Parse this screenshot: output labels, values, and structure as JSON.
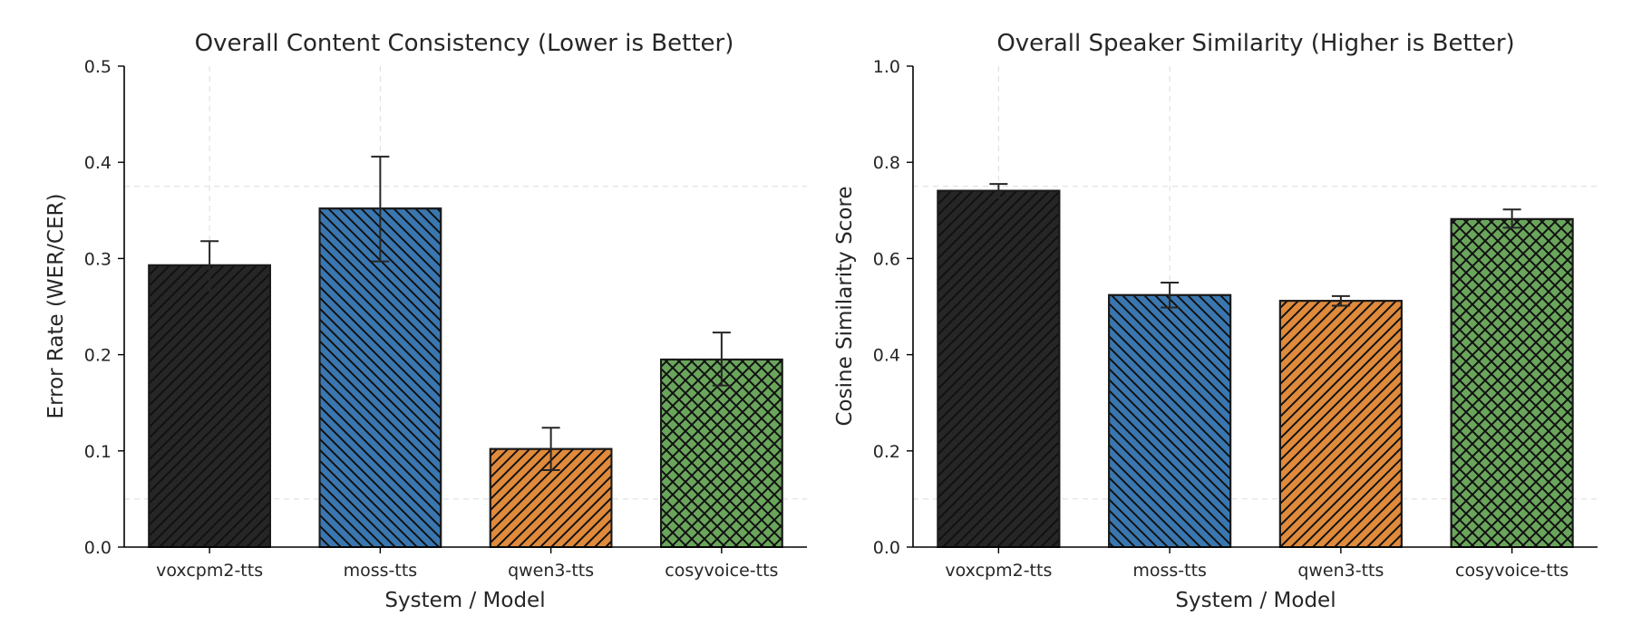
{
  "colors": {
    "voxcpm2-tts": "#262626",
    "moss-tts": "#3a77b0",
    "qwen3-tts": "#e08a3c",
    "cosyvoice-tts": "#6aa55c"
  },
  "hatches": {
    "voxcpm2-tts": "forward-diagonal",
    "moss-tts": "backward-diagonal",
    "qwen3-tts": "forward-diagonal",
    "cosyvoice-tts": "cross-diagonal"
  },
  "chart_data": [
    {
      "type": "bar",
      "title": "Overall Content Consistency (Lower is Better)",
      "xlabel": "System / Model",
      "ylabel": "Error Rate (WER/CER)",
      "categories": [
        "voxcpm2-tts",
        "moss-tts",
        "qwen3-tts",
        "cosyvoice-tts"
      ],
      "values": [
        0.293,
        0.352,
        0.102,
        0.195
      ],
      "error_low": [
        0.267,
        0.297,
        0.08,
        0.168
      ],
      "error_high": [
        0.318,
        0.406,
        0.124,
        0.223
      ],
      "ylim": [
        0,
        0.5
      ],
      "yticks": [
        "0.0",
        "0.1",
        "0.2",
        "0.3",
        "0.4",
        "0.5"
      ],
      "grid": true
    },
    {
      "type": "bar",
      "title": "Overall Speaker Similarity (Higher is Better)",
      "xlabel": "System / Model",
      "ylabel": "Cosine Similarity Score",
      "categories": [
        "voxcpm2-tts",
        "moss-tts",
        "qwen3-tts",
        "cosyvoice-tts"
      ],
      "values": [
        0.741,
        0.524,
        0.512,
        0.682
      ],
      "error_low": [
        0.727,
        0.498,
        0.502,
        0.664
      ],
      "error_high": [
        0.755,
        0.55,
        0.522,
        0.702
      ],
      "ylim": [
        0,
        1.0
      ],
      "yticks": [
        "0.0",
        "0.2",
        "0.4",
        "0.6",
        "0.8",
        "1.0"
      ],
      "grid": true
    }
  ]
}
